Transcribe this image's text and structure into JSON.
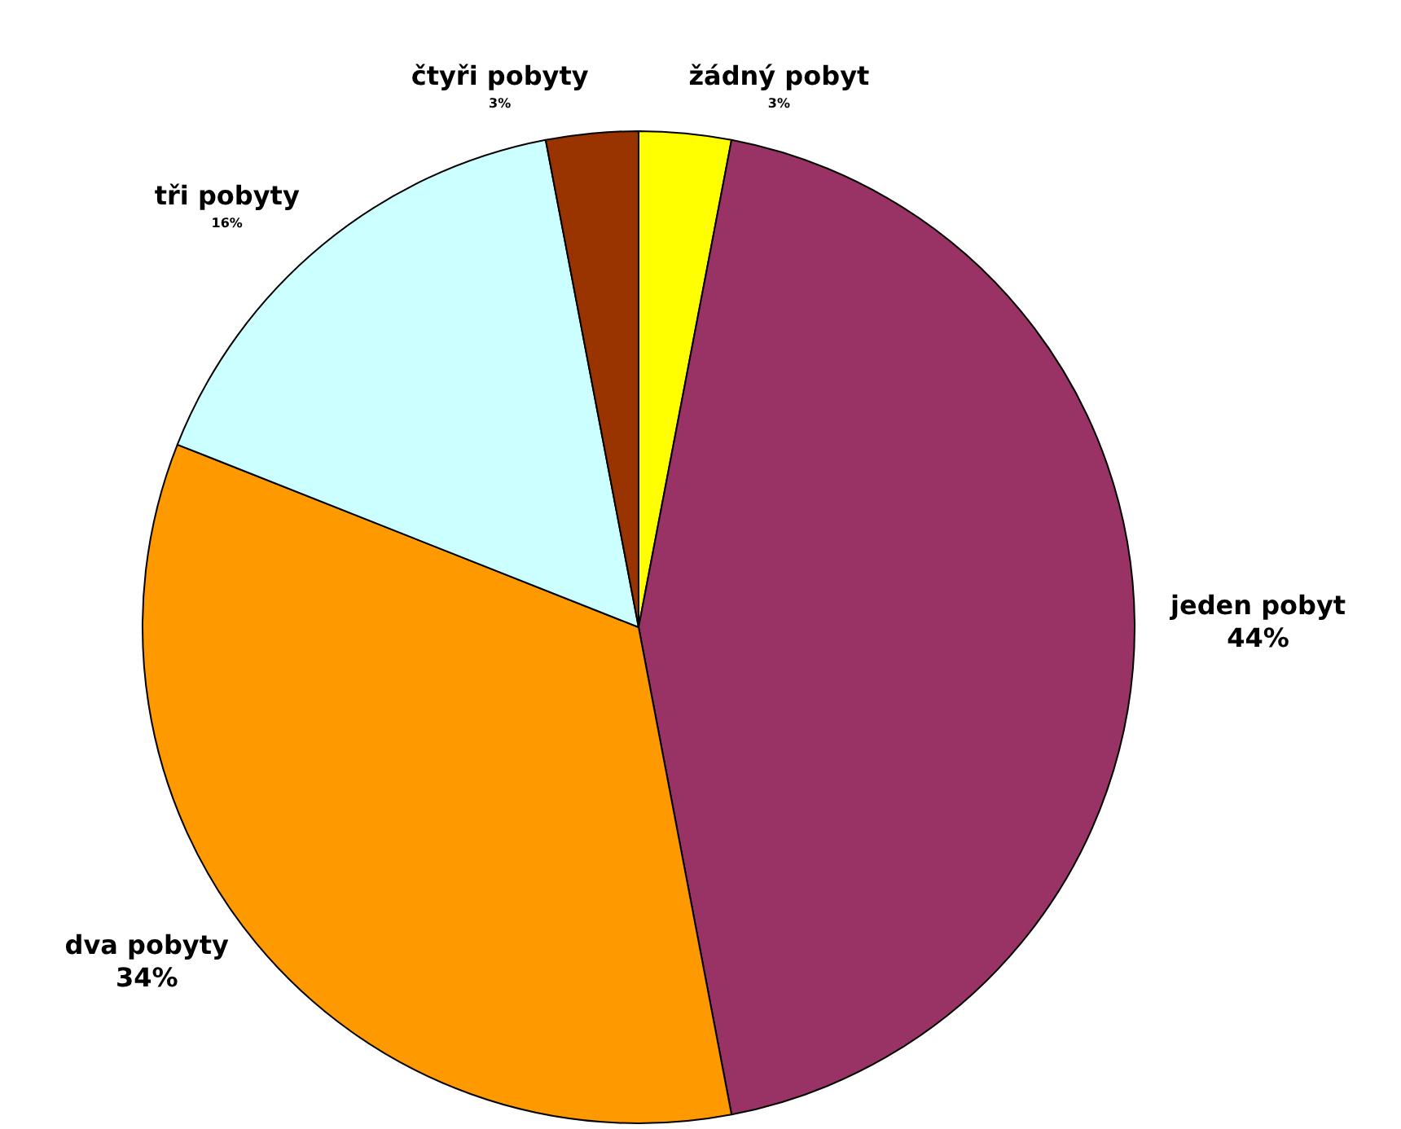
{
  "chart_data": {
    "type": "pie",
    "categories": [
      "žádný pobyt",
      "jeden pobyt",
      "dva pobyty",
      "tři pobyty",
      "čtyři pobyty"
    ],
    "values": [
      3,
      44,
      34,
      16,
      3
    ],
    "colors": [
      "#ffff00",
      "#993366",
      "#ff9900",
      "#ccffff",
      "#993300"
    ],
    "value_labels": [
      "3%",
      "44%",
      "34%",
      "16%",
      "3%"
    ],
    "legend": false
  }
}
